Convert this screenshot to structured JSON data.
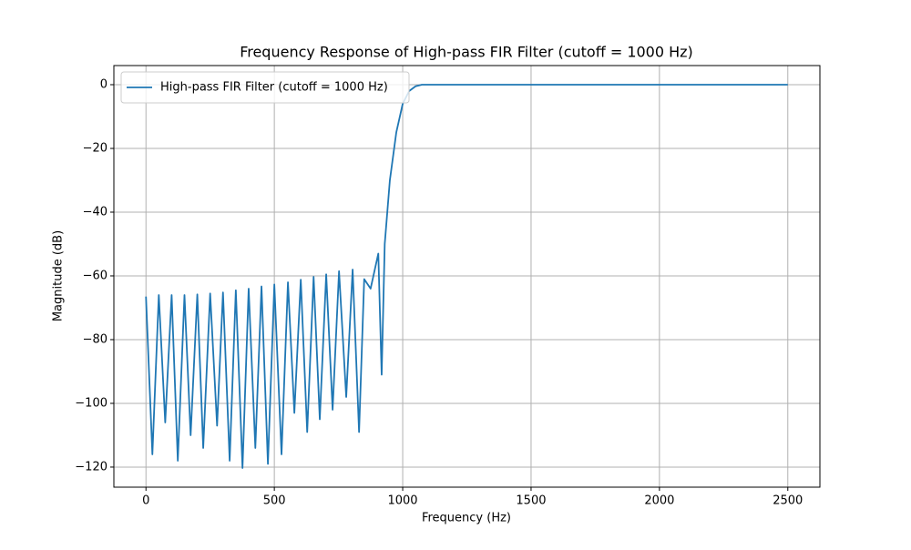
{
  "chart_data": {
    "type": "line",
    "title": "Frequency Response of High-pass FIR Filter (cutoff = 1000 Hz)",
    "x_label": "Frequency (Hz)",
    "y_label": "Magnitude (dB)",
    "x": [
      0,
      25,
      50,
      75,
      100,
      124,
      150,
      174,
      200,
      223,
      250,
      277,
      300,
      326,
      350,
      376,
      400,
      426,
      450,
      475,
      500,
      528,
      553,
      578,
      603,
      628,
      653,
      677,
      702,
      727,
      752,
      780,
      805,
      830,
      850,
      875,
      905,
      918,
      930,
      950,
      975,
      1000,
      1025,
      1050,
      1075,
      1500,
      2000,
      2500
    ],
    "series": [
      {
        "name": "High-pass FIR Filter (cutoff = 1000 Hz)",
        "color": "#1f77b4",
        "values": [
          -66.5,
          -116,
          -66,
          -106,
          -66,
          -118,
          -66,
          -110,
          -65.8,
          -114,
          -65.5,
          -107,
          -65.2,
          -118,
          -64.5,
          -120.3,
          -64,
          -114,
          -63.3,
          -119,
          -62.7,
          -116,
          -62,
          -103,
          -61.2,
          -109,
          -60.3,
          -105,
          -59.5,
          -102,
          -58.5,
          -98,
          -58,
          -109,
          -61,
          -64,
          -53,
          -91,
          -50,
          -30,
          -15,
          -6,
          -2,
          -0.5,
          0,
          0,
          0,
          0
        ]
      }
    ],
    "xlim": [
      -125,
      2625
    ],
    "ylim": [
      -126.3,
      6.0
    ],
    "xticks": [
      0,
      500,
      1000,
      1500,
      2000,
      2500
    ],
    "yticks": [
      {
        "value": -120,
        "label": "−120"
      },
      {
        "value": -100,
        "label": "−100"
      },
      {
        "value": -80,
        "label": "−80"
      },
      {
        "value": -60,
        "label": "−60"
      },
      {
        "value": -40,
        "label": "−40"
      },
      {
        "value": -20,
        "label": "−20"
      },
      0
    ],
    "grid": true,
    "legend": "upper left"
  }
}
